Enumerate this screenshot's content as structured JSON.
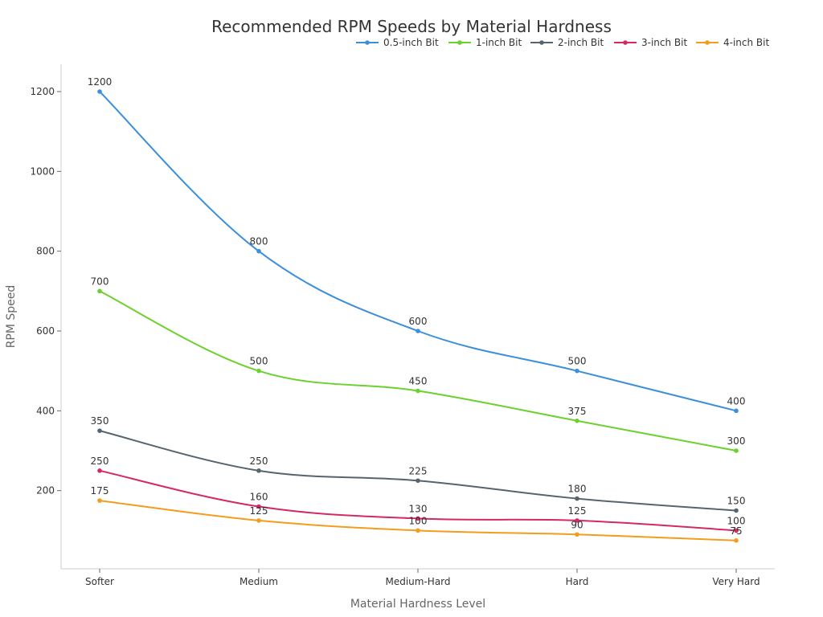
{
  "chart_data": {
    "type": "line",
    "title": "Recommended RPM Speeds by Material Hardness",
    "xlabel": "Material Hardness Level",
    "ylabel": "RPM Speed",
    "categories": [
      "Softer",
      "Medium",
      "Medium-Hard",
      "Hard",
      "Very Hard"
    ],
    "ylim": [
      0,
      1270
    ],
    "yticks": [
      200,
      400,
      600,
      800,
      1000,
      1200
    ],
    "grid": false,
    "legend_position": "top-right",
    "series": [
      {
        "name": "0.5-inch Bit",
        "color": "#3b8fdb",
        "values": [
          1200,
          800,
          600,
          500,
          400
        ]
      },
      {
        "name": "1-inch Bit",
        "color": "#6cd12d",
        "values": [
          700,
          500,
          450,
          375,
          300
        ]
      },
      {
        "name": "2-inch Bit",
        "color": "#56646e",
        "values": [
          350,
          250,
          225,
          180,
          150
        ]
      },
      {
        "name": "3-inch Bit",
        "color": "#d42a62",
        "values": [
          250,
          160,
          130,
          125,
          100
        ]
      },
      {
        "name": "4-inch Bit",
        "color": "#f39c1d",
        "values": [
          175,
          125,
          100,
          90,
          75
        ]
      }
    ]
  }
}
